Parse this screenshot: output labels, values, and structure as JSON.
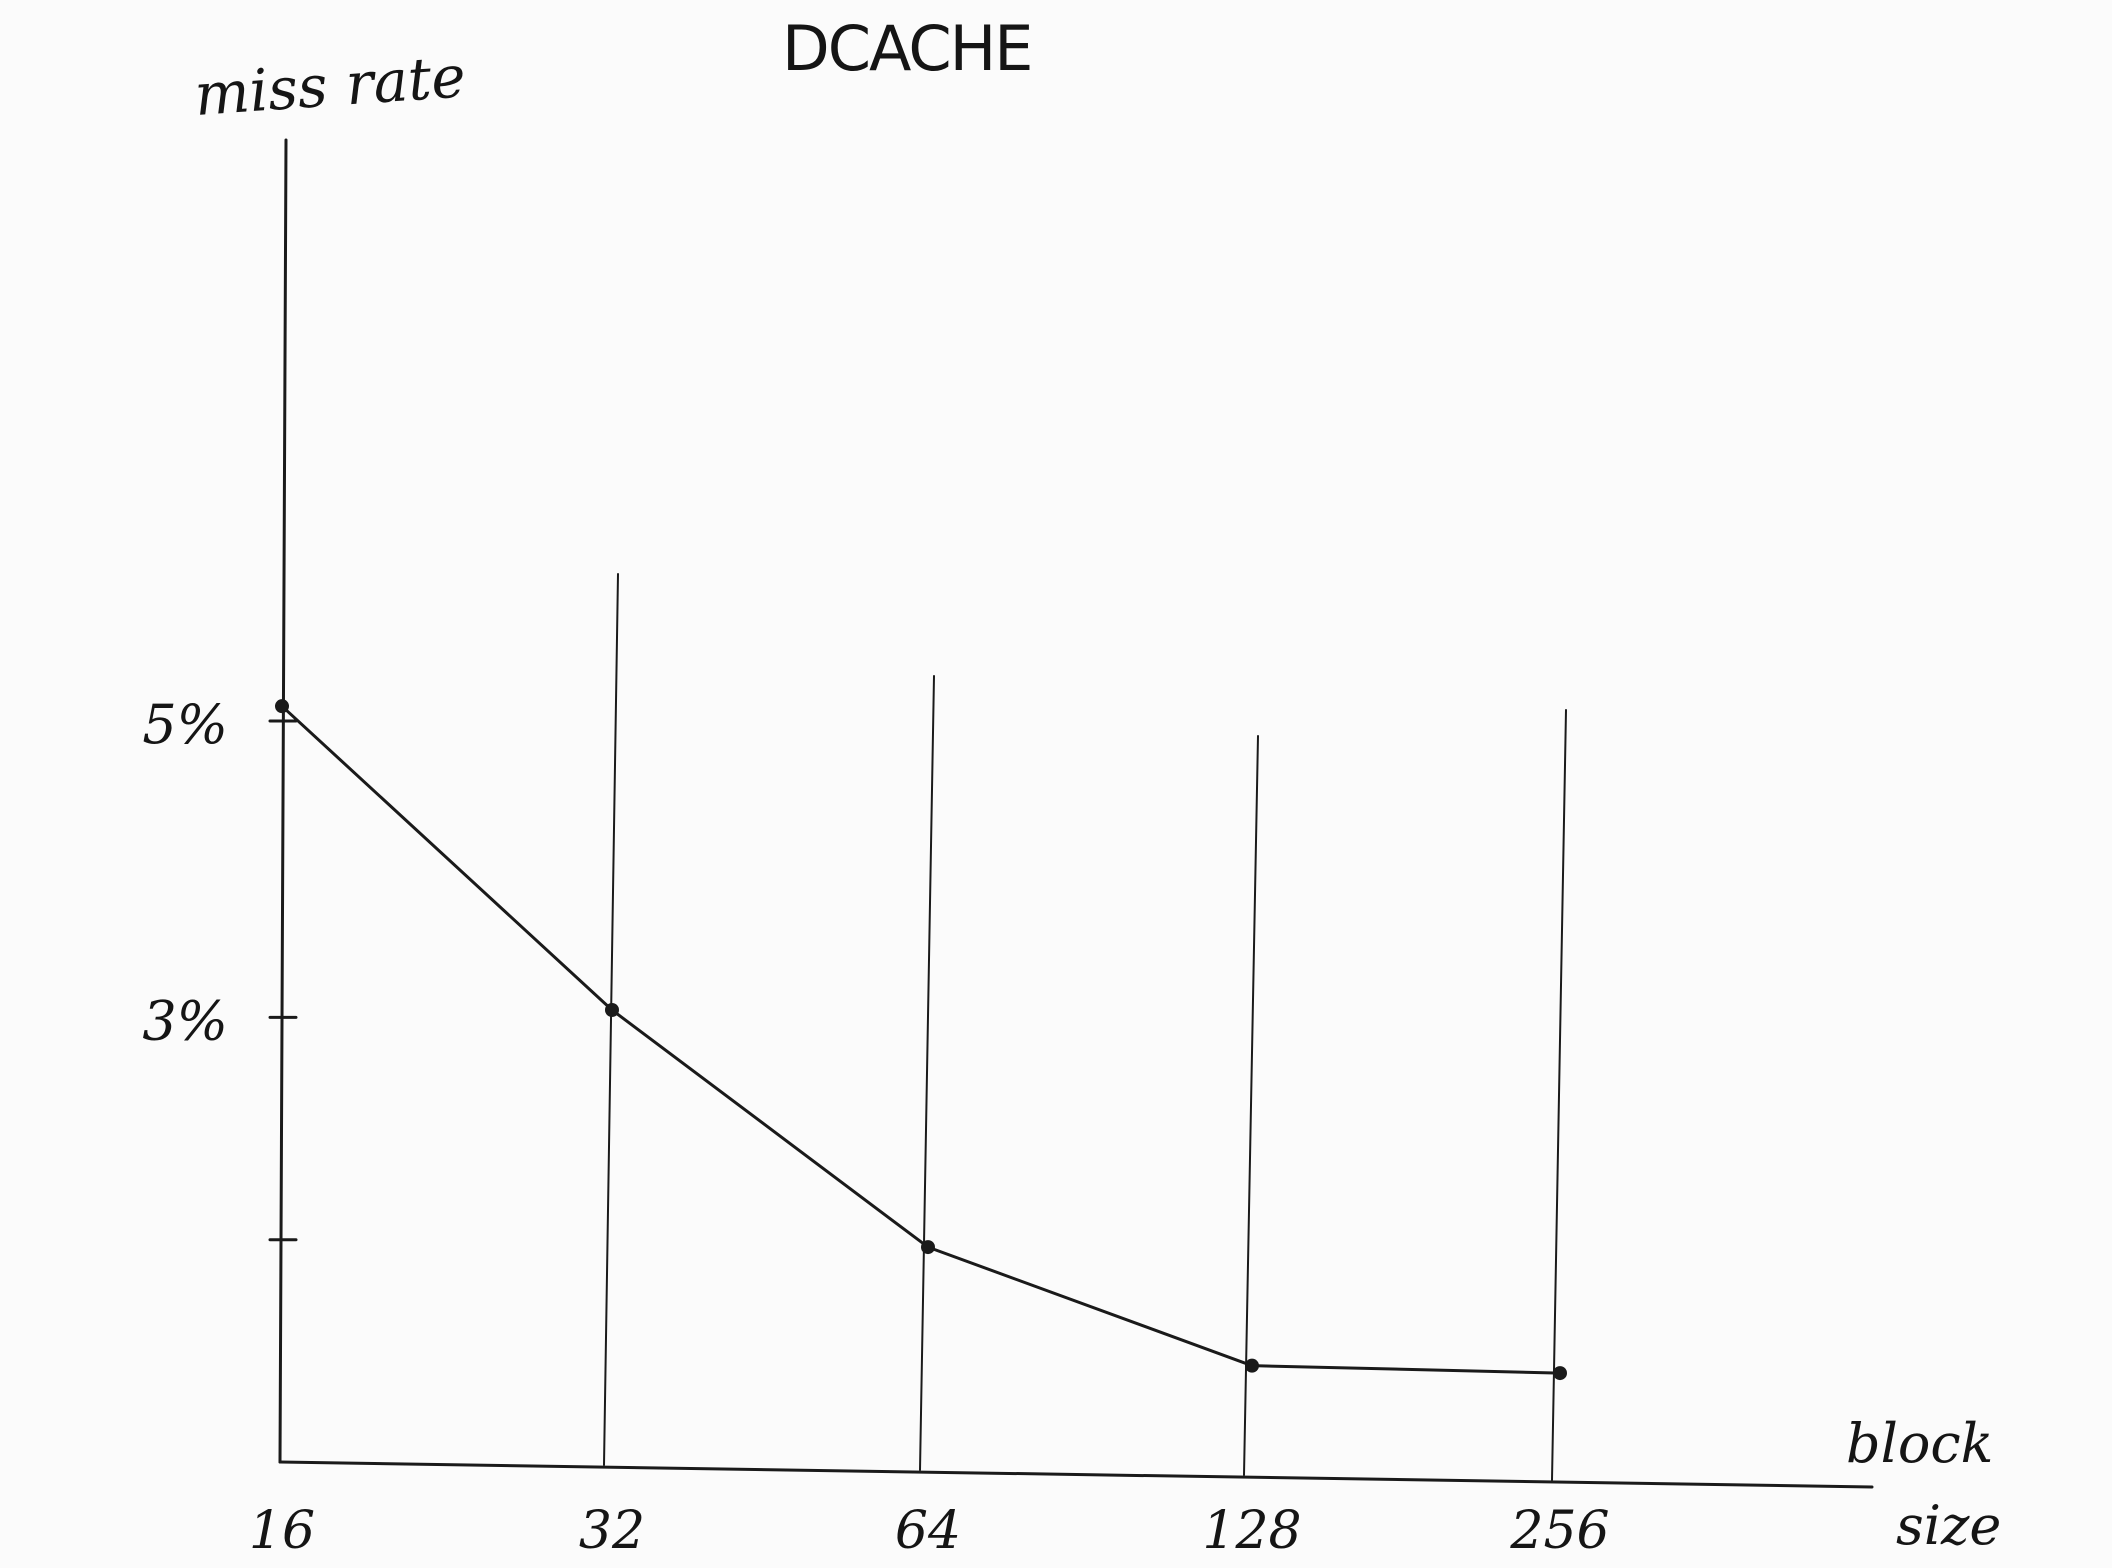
{
  "chart_data": {
    "type": "line",
    "title": "DCACHE",
    "ylabel": "miss rate",
    "xlabel": "block size",
    "xlabel_parts": [
      "block",
      "size"
    ],
    "categories": [
      "16",
      "32",
      "64",
      "128",
      "256"
    ],
    "values": [
      5.1,
      3.05,
      1.45,
      0.65,
      0.6
    ],
    "y_ticks": [
      {
        "value": 5,
        "label": "5%"
      },
      {
        "value": 3,
        "label": "3%"
      },
      {
        "value": 1.5,
        "label": ""
      }
    ],
    "ylim": [
      0,
      8.4
    ],
    "grid": "vertical guide lines at each x category",
    "legend": "none",
    "colors": {
      "ink": "#1a1a1a",
      "paper": "#fbfbfb"
    }
  }
}
